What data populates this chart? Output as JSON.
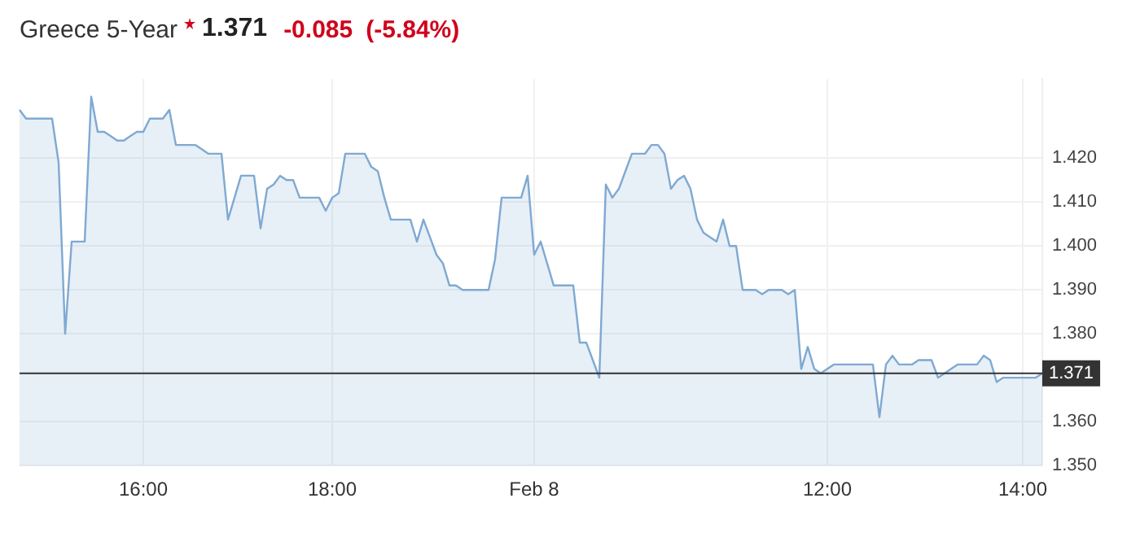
{
  "chart_data": {
    "type": "area",
    "title": "Greece 5-Year",
    "annotations": [
      "1.371",
      "-0.085",
      "(-5.84%)"
    ],
    "categories": [
      null,
      null,
      null,
      null,
      null,
      null,
      null,
      null,
      null,
      null,
      null,
      null,
      null,
      null,
      null,
      null,
      null,
      null,
      null,
      "16:00",
      null,
      null,
      null,
      null,
      null,
      null,
      null,
      null,
      null,
      null,
      null,
      null,
      null,
      null,
      null,
      null,
      null,
      null,
      null,
      null,
      null,
      null,
      null,
      null,
      null,
      null,
      null,
      null,
      "18:00",
      null,
      null,
      null,
      null,
      null,
      null,
      null,
      null,
      null,
      null,
      null,
      null,
      null,
      null,
      null,
      null,
      null,
      null,
      null,
      null,
      null,
      null,
      null,
      null,
      null,
      null,
      null,
      null,
      null,
      null,
      "Feb 8",
      null,
      null,
      null,
      null,
      null,
      null,
      null,
      null,
      null,
      null,
      null,
      null,
      null,
      null,
      null,
      null,
      null,
      null,
      null,
      null,
      null,
      null,
      null,
      null,
      null,
      null,
      null,
      null,
      null,
      null,
      null,
      null,
      null,
      null,
      null,
      null,
      null,
      null,
      null,
      null,
      null,
      null,
      null,
      null,
      "12:00",
      null,
      null,
      null,
      null,
      null,
      null,
      null,
      null,
      null,
      null,
      null,
      null,
      null,
      null,
      null,
      null,
      null,
      null,
      null,
      null,
      null,
      null,
      null,
      null,
      null,
      null,
      null,
      null,
      null,
      "14:00",
      null,
      null,
      null
    ],
    "series": [
      {
        "color": "#7fa9d2",
        "values": [
          1.431,
          1.429,
          1.429,
          1.429,
          1.429,
          1.429,
          1.419,
          1.38,
          1.401,
          1.401,
          1.401,
          1.434,
          1.426,
          1.426,
          1.425,
          1.424,
          1.424,
          1.425,
          1.426,
          1.426,
          1.429,
          1.429,
          1.429,
          1.431,
          1.423,
          1.423,
          1.423,
          1.423,
          1.422,
          1.421,
          1.421,
          1.421,
          1.406,
          1.411,
          1.416,
          1.416,
          1.416,
          1.404,
          1.413,
          1.414,
          1.416,
          1.415,
          1.415,
          1.411,
          1.411,
          1.411,
          1.411,
          1.408,
          1.411,
          1.412,
          1.421,
          1.421,
          1.421,
          1.421,
          1.418,
          1.417,
          1.411,
          1.406,
          1.406,
          1.406,
          1.406,
          1.401,
          1.406,
          1.402,
          1.398,
          1.396,
          1.391,
          1.391,
          1.39,
          1.39,
          1.39,
          1.39,
          1.39,
          1.397,
          1.411,
          1.411,
          1.411,
          1.411,
          1.416,
          1.398,
          1.401,
          1.396,
          1.391,
          1.391,
          1.391,
          1.391,
          1.378,
          1.378,
          1.374,
          1.37,
          1.414,
          1.411,
          1.413,
          1.417,
          1.421,
          1.421,
          1.421,
          1.423,
          1.423,
          1.421,
          1.413,
          1.415,
          1.416,
          1.413,
          1.406,
          1.403,
          1.402,
          1.401,
          1.406,
          1.4,
          1.4,
          1.39,
          1.39,
          1.39,
          1.389,
          1.39,
          1.39,
          1.39,
          1.389,
          1.39,
          1.372,
          1.377,
          1.372,
          1.371,
          1.372,
          1.373,
          1.373,
          1.373,
          1.373,
          1.373,
          1.373,
          1.373,
          1.361,
          1.373,
          1.375,
          1.373,
          1.373,
          1.373,
          1.374,
          1.374,
          1.374,
          1.37,
          1.371,
          1.372,
          1.373,
          1.373,
          1.373,
          1.373,
          1.375,
          1.374,
          1.369,
          1.37,
          1.37,
          1.37,
          1.37,
          1.37,
          1.37,
          1.371
        ]
      }
    ],
    "ylim": [
      1.35,
      1.438
    ],
    "yticks": [
      {
        "value": 1.35,
        "label": "1.350"
      },
      {
        "value": 1.36,
        "label": "1.360"
      },
      {
        "value": 1.38,
        "label": "1.380"
      },
      {
        "value": 1.39,
        "label": "1.390"
      },
      {
        "value": 1.4,
        "label": "1.400"
      },
      {
        "value": 1.41,
        "label": "1.410"
      },
      {
        "value": 1.42,
        "label": "1.420"
      }
    ],
    "ref_lines": [
      {
        "axis": "y",
        "value": 1.371,
        "label": "1.371",
        "color": "#333333"
      }
    ],
    "grid": true,
    "legend": false,
    "marker": "none",
    "line_style": "solid"
  }
}
